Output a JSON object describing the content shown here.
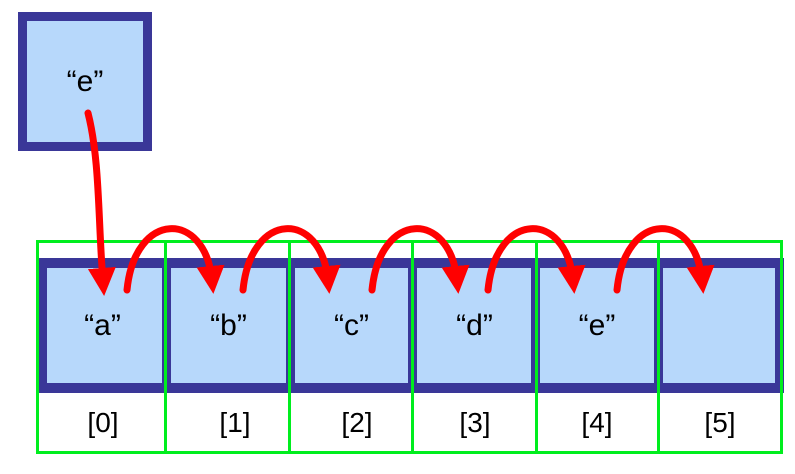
{
  "inserted_value": "“e”",
  "array": {
    "cells": [
      "“a”",
      "“b”",
      "“c”",
      "“d”",
      "“e”",
      ""
    ],
    "indices": [
      "[0]",
      "[1]",
      "[2]",
      "[3]",
      "[4]",
      "[5]"
    ]
  },
  "colors": {
    "cell_fill": "#b7d8fb",
    "cell_border": "#3a3798",
    "arrow": "#ff0000",
    "index_box": "#00ee1e"
  }
}
